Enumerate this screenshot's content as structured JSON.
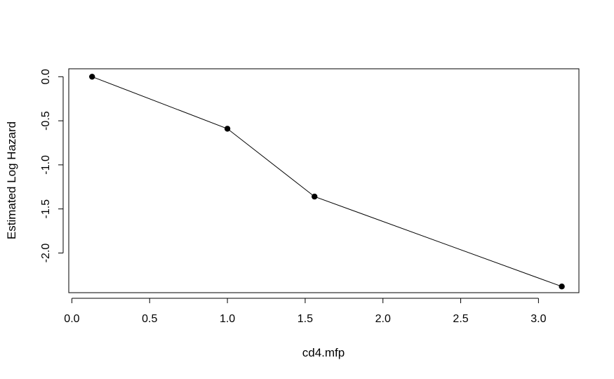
{
  "chart_data": {
    "type": "line",
    "title": "",
    "xlabel": "cd4.mfp",
    "ylabel": "Estimated Log Hazard",
    "xlim": [
      -0.02,
      3.26
    ],
    "ylim": [
      -2.45,
      0.09
    ],
    "x_ticks": [
      0.0,
      0.5,
      1.0,
      1.5,
      2.0,
      2.5,
      3.0
    ],
    "x_tick_labels": [
      "0.0",
      "0.5",
      "1.0",
      "1.5",
      "2.0",
      "2.5",
      "3.0"
    ],
    "y_ticks": [
      0.0,
      -0.5,
      -1.0,
      -1.5,
      -2.0
    ],
    "y_tick_labels": [
      "0.0",
      "-0.5",
      "-1.0",
      "-1.5",
      "-2.0"
    ],
    "series": [
      {
        "x": [
          0.13,
          1.0,
          1.56,
          3.15
        ],
        "y": [
          0.0,
          -0.59,
          -1.36,
          -2.38
        ],
        "color": "#000000",
        "marker": "filled-circle"
      }
    ],
    "grid": false,
    "legend": "none"
  }
}
